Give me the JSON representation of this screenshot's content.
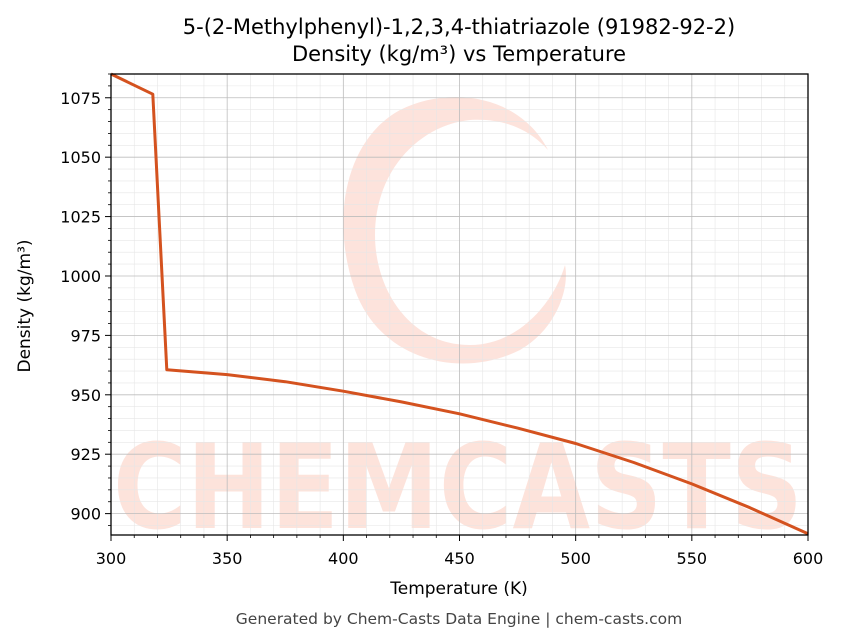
{
  "chart_data": {
    "type": "line",
    "title": "5-(2-Methylphenyl)-1,2,3,4-thiatriazole (91982-92-2)",
    "subtitle": "Density (kg/m³) vs Temperature",
    "xlabel": "Temperature (K)",
    "ylabel": "Density (kg/m³)",
    "xlim": [
      300,
      600
    ],
    "ylim": [
      891,
      1085
    ],
    "xticks": [
      300,
      350,
      400,
      450,
      500,
      550,
      600
    ],
    "yticks": [
      900,
      925,
      950,
      975,
      1000,
      1025,
      1050,
      1075
    ],
    "grid": true,
    "series": [
      {
        "color": "#d4521f",
        "x": [
          300,
          318,
          324,
          350,
          375,
          400,
          425,
          450,
          475,
          500,
          525,
          550,
          575,
          600
        ],
        "y": [
          1085,
          1076.5,
          960.5,
          958.5,
          955.5,
          951.5,
          947,
          942,
          936,
          929.5,
          921.5,
          912.5,
          902.5,
          891.5
        ]
      }
    ]
  },
  "watermark": {
    "text": "CHEMCASTS",
    "color": "#fde0d8"
  },
  "footer": {
    "text": "Generated by Chem-Casts Data Engine | chem-casts.com"
  }
}
